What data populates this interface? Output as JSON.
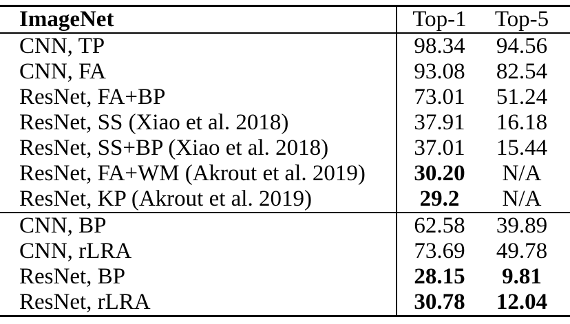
{
  "table": {
    "title_col": "ImageNet",
    "columns": {
      "top1": "Top-1",
      "top5": "Top-5"
    },
    "sections": [
      {
        "rows": [
          {
            "method": "CNN, TP",
            "top1": "98.34",
            "top5": "94.56",
            "top1_bold": false,
            "top5_bold": false
          },
          {
            "method": "CNN, FA",
            "top1": "93.08",
            "top5": "82.54",
            "top1_bold": false,
            "top5_bold": false
          },
          {
            "method": "ResNet, FA+BP",
            "top1": "73.01",
            "top5": "51.24",
            "top1_bold": false,
            "top5_bold": false
          },
          {
            "method": "ResNet, SS (Xiao et al. 2018)",
            "top1": "37.91",
            "top5": "16.18",
            "top1_bold": false,
            "top5_bold": false
          },
          {
            "method": "ResNet, SS+BP (Xiao et al. 2018)",
            "top1": "37.01",
            "top5": "15.44",
            "top1_bold": false,
            "top5_bold": false
          },
          {
            "method": "ResNet, FA+WM (Akrout et al. 2019)",
            "top1": "30.20",
            "top5": "N/A",
            "top1_bold": true,
            "top5_bold": false
          },
          {
            "method": "ResNet, KP (Akrout et al. 2019)",
            "top1": "29.2",
            "top5": "N/A",
            "top1_bold": true,
            "top5_bold": false
          }
        ]
      },
      {
        "rows": [
          {
            "method": "CNN, BP",
            "top1": "62.58",
            "top5": "39.89",
            "top1_bold": false,
            "top5_bold": false
          },
          {
            "method": "CNN, rLRA",
            "top1": "73.69",
            "top5": "49.78",
            "top1_bold": false,
            "top5_bold": false
          },
          {
            "method": "ResNet, BP",
            "top1": "28.15",
            "top5": "9.81",
            "top1_bold": true,
            "top5_bold": true
          },
          {
            "method": "ResNet, rLRA",
            "top1": "30.78",
            "top5": "12.04",
            "top1_bold": true,
            "top5_bold": true
          }
        ]
      }
    ]
  }
}
